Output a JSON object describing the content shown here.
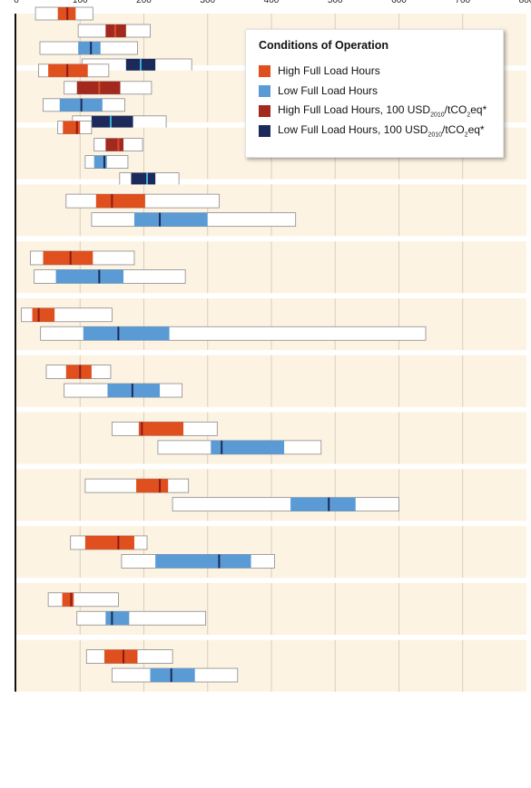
{
  "chart_data": {
    "type": "range-bar",
    "xlim": [
      0,
      800
    ],
    "x_ticks": [
      "0",
      "100",
      "200",
      "300",
      "400",
      "500",
      "600",
      "700",
      "800"
    ],
    "grid": "vertical",
    "legend": {
      "title": "Conditions of Operation",
      "placement": "top-right",
      "entries": [
        {
          "key": "high",
          "label": "High Full Load Hours",
          "color": "#e0501e"
        },
        {
          "key": "low",
          "label": "Low Full Load Hours",
          "color": "#5b9bd5"
        },
        {
          "key": "high100",
          "label_parts": [
            "High Full Load Hours, 100 USD",
            "2010",
            "/tCO",
            "2",
            "eq*"
          ],
          "color": "#a3281e"
        },
        {
          "key": "low100",
          "label_parts": [
            "Low Full Load Hours,  100 USD",
            "2010",
            "/tCO",
            "2",
            "eq*"
          ],
          "color": "#1b2a5a"
        }
      ]
    },
    "colors": {
      "panel_bg": "#fdf3e3",
      "high_fill": "#e0501e",
      "high_median": "#8b1a14",
      "low_fill": "#5b9bd5",
      "low_median": "#1b2a5a",
      "high100_fill": "#a3281e",
      "high100_median": "#d4502a",
      "low100_fill": "#1b2a5a",
      "low100_median": "#3ab0d8",
      "range_fill": "#ffffff",
      "grid": "#d8cfc0"
    },
    "groups": [
      {
        "bars": [
          {
            "key": "high",
            "min": 30,
            "q1": 65,
            "median": 80,
            "q3": 93,
            "max": 120
          },
          {
            "key": "high100",
            "min": 97,
            "q1": 140,
            "median": 155,
            "q3": 172,
            "max": 210
          },
          {
            "key": "low",
            "min": 37,
            "q1": 97,
            "median": 117,
            "q3": 132,
            "max": 190
          },
          {
            "key": "low100",
            "min": 103,
            "q1": 172,
            "median": 195,
            "q3": 218,
            "max": 275
          }
        ]
      },
      {
        "bars": [
          {
            "key": "high",
            "min": 35,
            "q1": 50,
            "median": 80,
            "q3": 112,
            "max": 145
          },
          {
            "key": "high100",
            "min": 75,
            "q1": 95,
            "median": 130,
            "q3": 163,
            "max": 212
          },
          {
            "key": "low",
            "min": 42,
            "q1": 68,
            "median": 102,
            "q3": 135,
            "max": 170
          },
          {
            "key": "low100",
            "min": 88,
            "q1": 118,
            "median": 148,
            "q3": 183,
            "max": 235
          }
        ]
      },
      {
        "bars": [
          {
            "key": "high",
            "min": 65,
            "q1": 73,
            "median": 95,
            "q3": 100,
            "max": 118
          },
          {
            "key": "high100",
            "min": 122,
            "q1": 140,
            "median": 160,
            "q3": 168,
            "max": 198
          },
          {
            "key": "low",
            "min": 108,
            "q1": 122,
            "median": 138,
            "q3": 142,
            "max": 175
          },
          {
            "key": "low100",
            "min": 162,
            "q1": 180,
            "median": 205,
            "q3": 218,
            "max": 255
          }
        ]
      },
      {
        "bars": [
          {
            "key": "high",
            "min": 78,
            "q1": 125,
            "median": 150,
            "q3": 202,
            "max": 318
          },
          {
            "key": "low",
            "min": 118,
            "q1": 185,
            "median": 225,
            "q3": 300,
            "max": 438
          }
        ]
      },
      {
        "bars": [
          {
            "key": "high",
            "min": 22,
            "q1": 42,
            "median": 85,
            "q3": 120,
            "max": 185
          },
          {
            "key": "low",
            "min": 28,
            "q1": 62,
            "median": 130,
            "q3": 168,
            "max": 265
          }
        ]
      },
      {
        "bars": [
          {
            "key": "high",
            "min": 8,
            "q1": 25,
            "median": 35,
            "q3": 60,
            "max": 150
          },
          {
            "key": "low",
            "min": 38,
            "q1": 105,
            "median": 160,
            "q3": 240,
            "max": 642
          }
        ]
      },
      {
        "bars": [
          {
            "key": "high",
            "min": 47,
            "q1": 78,
            "median": 100,
            "q3": 118,
            "max": 148
          },
          {
            "key": "low",
            "min": 75,
            "q1": 143,
            "median": 182,
            "q3": 225,
            "max": 260
          }
        ]
      },
      {
        "bars": [
          {
            "key": "high",
            "min": 150,
            "q1": 192,
            "median": 197,
            "q3": 262,
            "max": 315
          },
          {
            "key": "low",
            "min": 222,
            "q1": 305,
            "median": 322,
            "q3": 420,
            "max": 478
          }
        ]
      },
      {
        "bars": [
          {
            "key": "high",
            "min": 108,
            "q1": 188,
            "median": 225,
            "q3": 238,
            "max": 270
          },
          {
            "key": "low",
            "min": 245,
            "q1": 430,
            "median": 490,
            "q3": 532,
            "max": 600
          }
        ]
      },
      {
        "bars": [
          {
            "key": "high",
            "min": 85,
            "q1": 108,
            "median": 160,
            "q3": 185,
            "max": 205
          },
          {
            "key": "low",
            "min": 165,
            "q1": 218,
            "median": 318,
            "q3": 368,
            "max": 405
          }
        ]
      },
      {
        "bars": [
          {
            "key": "high",
            "min": 50,
            "q1": 72,
            "median": 86,
            "q3": 90,
            "max": 160
          },
          {
            "key": "low",
            "min": 95,
            "q1": 140,
            "median": 150,
            "q3": 177,
            "max": 297
          }
        ]
      },
      {
        "bars": [
          {
            "key": "high",
            "min": 110,
            "q1": 138,
            "median": 168,
            "q3": 190,
            "max": 245
          },
          {
            "key": "low",
            "min": 150,
            "q1": 210,
            "median": 243,
            "q3": 280,
            "max": 347
          }
        ]
      }
    ]
  }
}
